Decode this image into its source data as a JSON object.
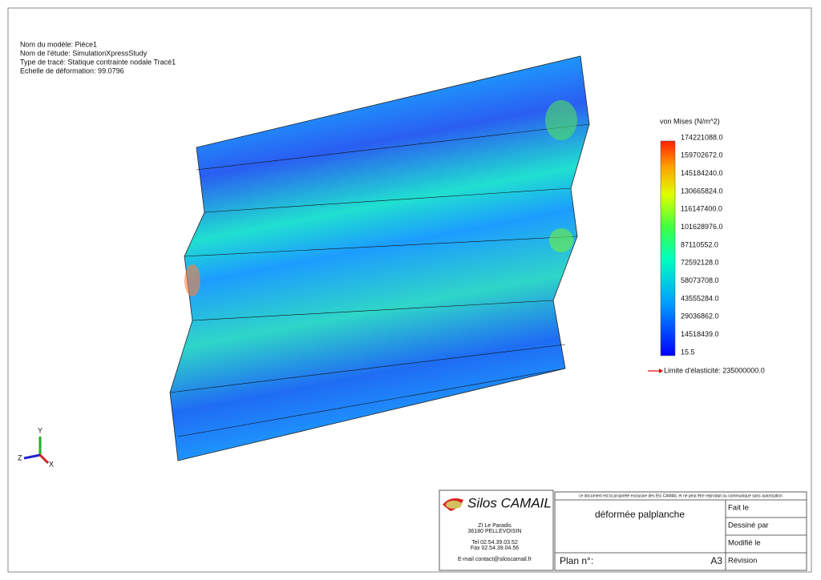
{
  "info": {
    "lines": [
      "Nom du modèle: Pièce1",
      "Nom de l'étude: SimulationXpressStudy",
      "Type de tracé: Statique contrainte nodale Tracé1",
      "Echelle de déformation: 99.0796"
    ]
  },
  "legend": {
    "title": "von Mises (N/m^2)",
    "labels": [
      "174221088.0",
      "159702672.0",
      "145184240.0",
      "130665824.0",
      "116147400.0",
      "101628976.0",
      "87110552.0",
      "72592128.0",
      "58073708.0",
      "43555284.0",
      "29036862.0",
      "14518439.0",
      "15.5"
    ],
    "limit": "Limite d'élasticité: 235000000.0"
  },
  "axes": {
    "y": "Y",
    "z": "Z",
    "x": "X"
  },
  "title_block": {
    "company": "Silos CAMAIL",
    "address": [
      "ZI Le Paradis",
      "36180 PELLEVOISIN"
    ],
    "phones": [
      "Tel 02.54.39.03.52",
      "Fax 02.54.39.04.56"
    ],
    "email": "E-mail contact@siloscamail.fr",
    "notice": "ce document est la propriété exclusive des Ets CAMAIL et ne peut être reproduit ou communiqué sans autorisation",
    "drawing_title": "déformée palplanche",
    "fields": [
      "Fait le",
      "Dessiné par",
      "Modifié le",
      "Révision"
    ],
    "plan_label": "Plan n°:",
    "format": "A3"
  }
}
